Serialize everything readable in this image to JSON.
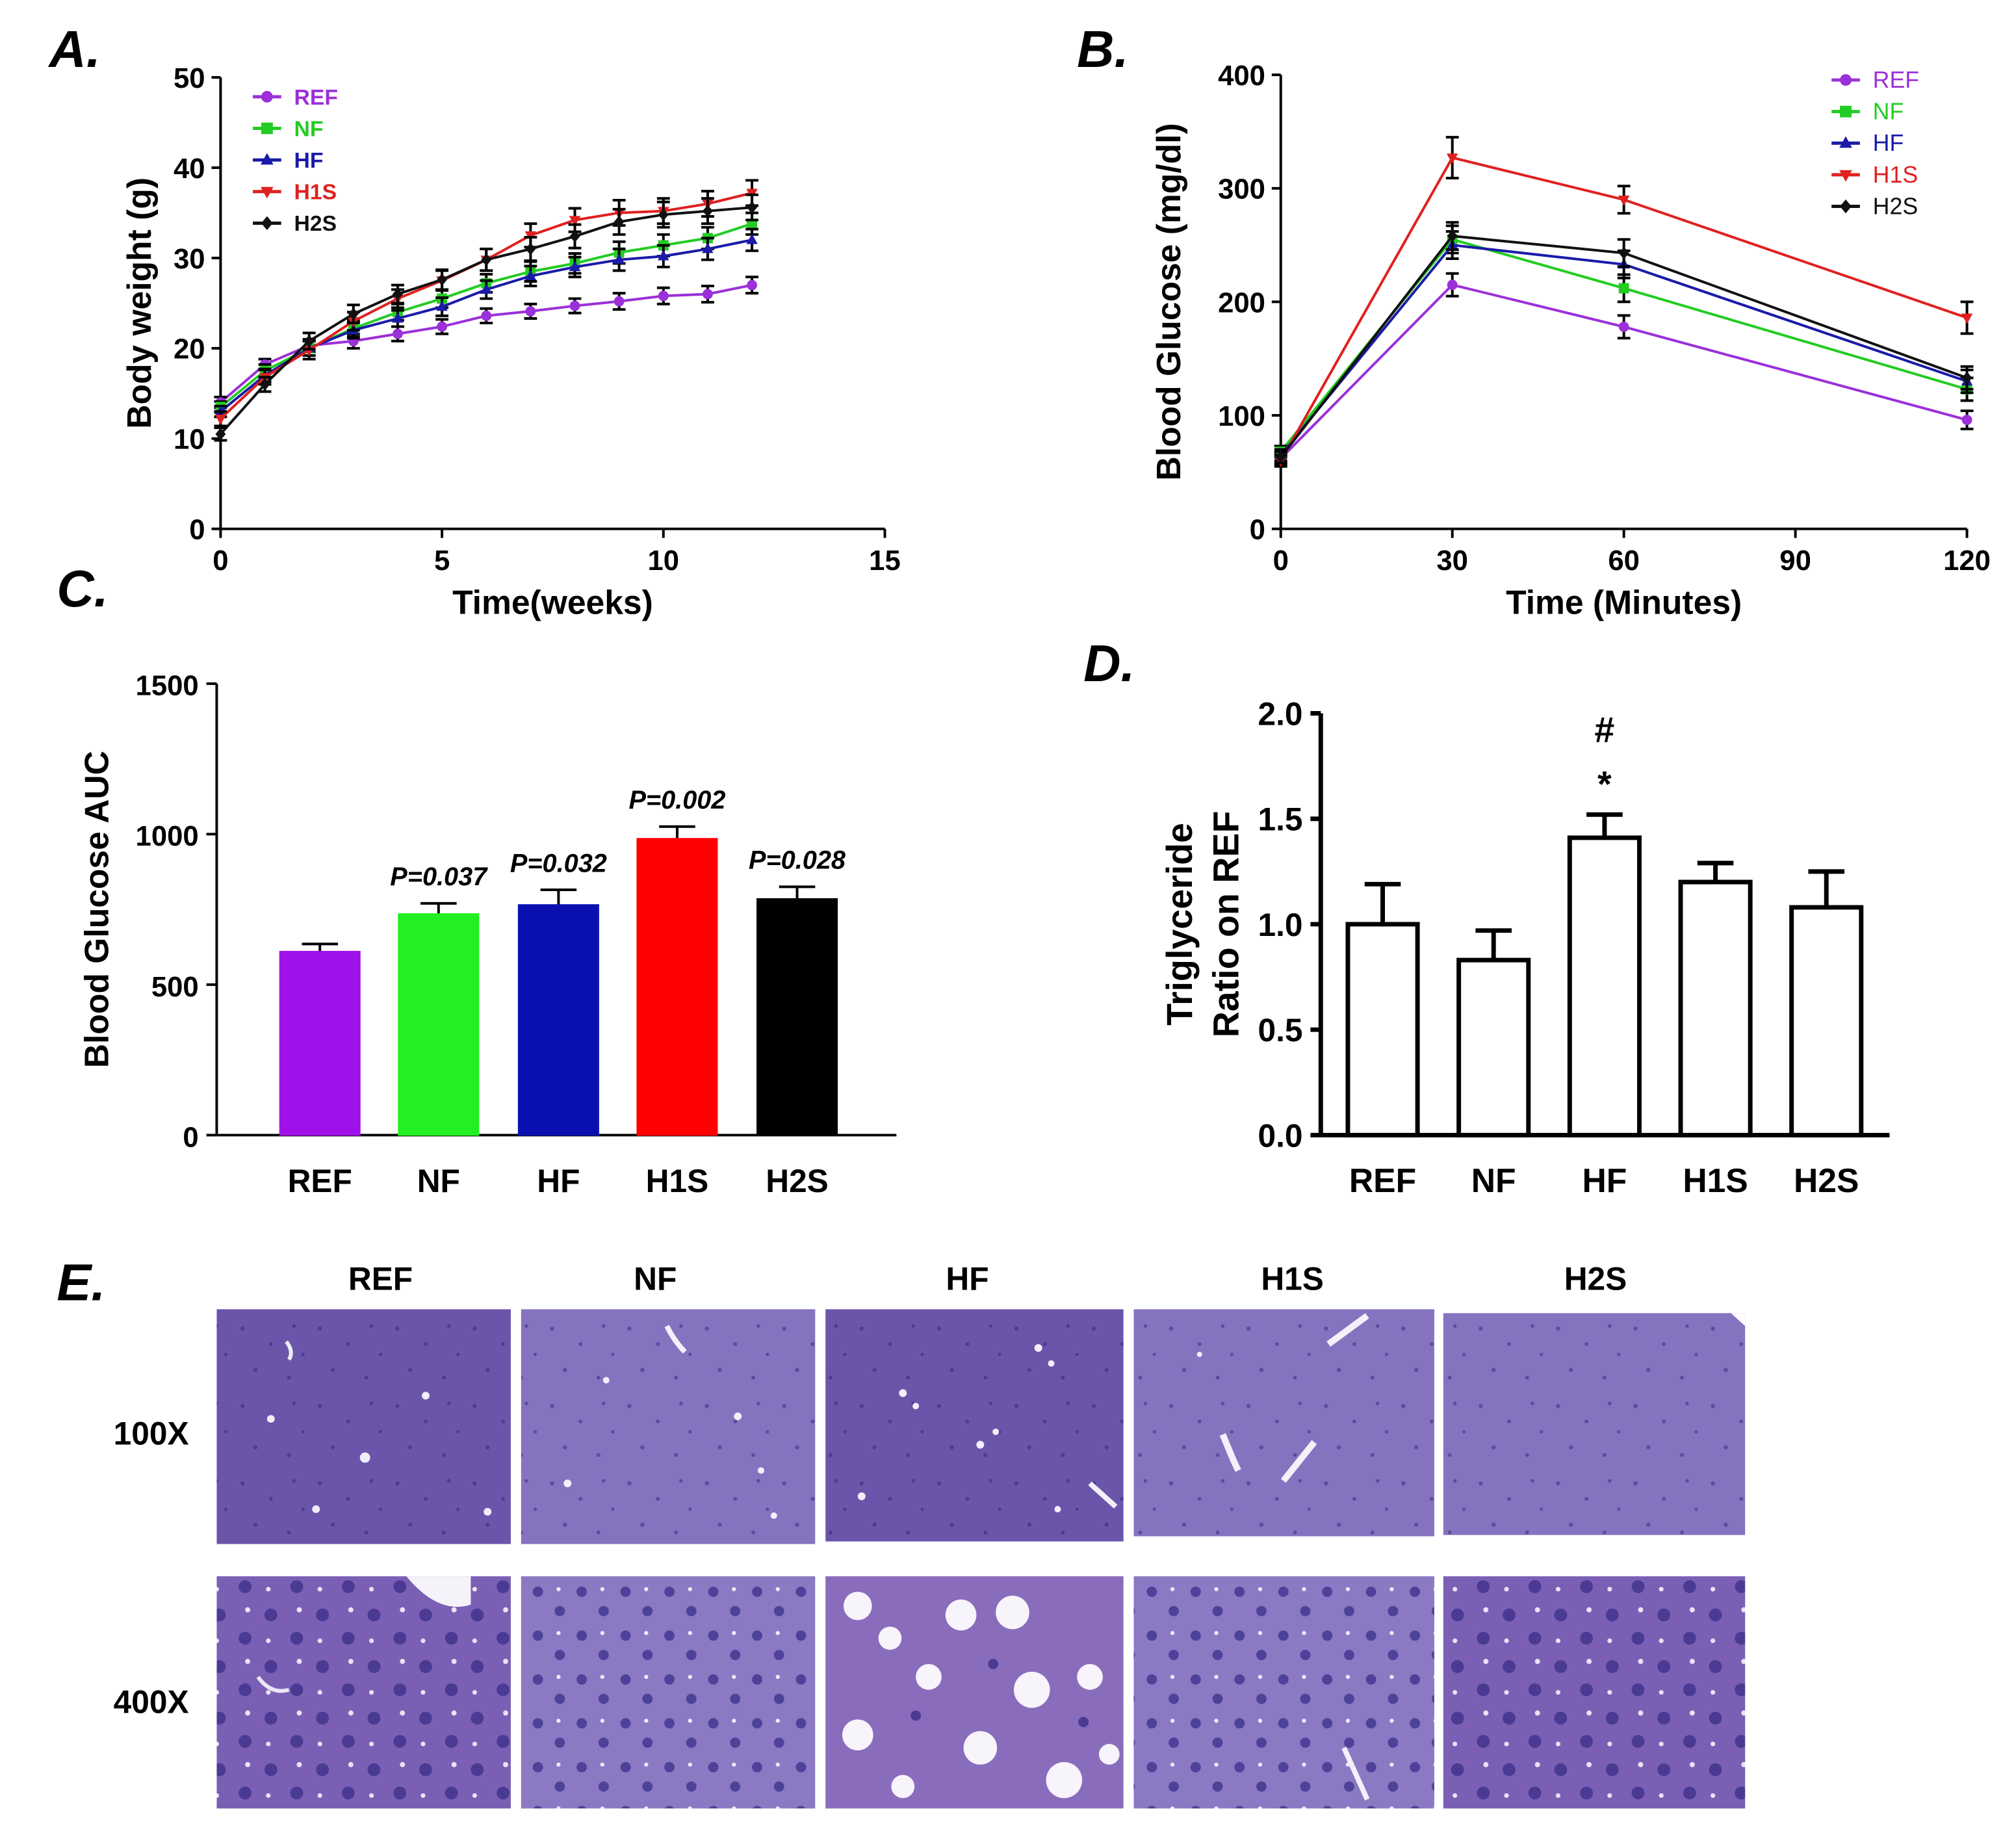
{
  "figure": {
    "panels": {
      "a": "A.",
      "b": "B.",
      "c": "C.",
      "d": "D.",
      "e": "E."
    }
  },
  "histology": {
    "columns": [
      "REF",
      "NF",
      "HF",
      "H1S",
      "H2S"
    ],
    "rows": [
      "100X",
      "400X"
    ],
    "colors": {
      "stain": "#6a4fa6",
      "dark": "#4b3a8c",
      "nucleus": "#3e3590",
      "vacuole": "#f4f0fa"
    }
  },
  "chart_data": [
    {
      "id": "A",
      "type": "line",
      "title": "",
      "xlabel": "Time(weeks)",
      "ylabel": "Body weight (g)",
      "xlim": [
        0,
        15
      ],
      "ylim": [
        0,
        50
      ],
      "xticks": [
        "0",
        "5",
        "10",
        "15"
      ],
      "yticks": [
        "0",
        "10",
        "20",
        "30",
        "40",
        "50"
      ],
      "legend_position": "top-left",
      "x": [
        0,
        1,
        2,
        3,
        4,
        5,
        6,
        7,
        8,
        9,
        10,
        11,
        12
      ],
      "series": [
        {
          "name": "REF",
          "color": "#9b30d9",
          "marker": "circle",
          "values": [
            14,
            18.2,
            20.3,
            20.8,
            21.6,
            22.4,
            23.6,
            24.1,
            24.7,
            25.2,
            25.8,
            26.0,
            27.0
          ],
          "errors": [
            0.6,
            0.6,
            0.7,
            0.8,
            0.8,
            0.8,
            0.8,
            0.8,
            0.8,
            0.9,
            0.9,
            0.9,
            0.9
          ]
        },
        {
          "name": "NF",
          "color": "#22cc22",
          "marker": "square",
          "values": [
            13.5,
            17.5,
            20.0,
            22.2,
            24.0,
            25.5,
            27.2,
            28.5,
            29.4,
            30.6,
            31.4,
            32.2,
            33.8
          ],
          "errors": [
            0.6,
            0.7,
            0.8,
            0.9,
            0.9,
            1.0,
            1.0,
            1.1,
            1.1,
            1.2,
            1.2,
            1.2,
            1.2
          ]
        },
        {
          "name": "HF",
          "color": "#1a1aa8",
          "marker": "triangle",
          "values": [
            13.0,
            17.0,
            20.0,
            22.0,
            23.3,
            24.6,
            26.5,
            28.0,
            29.0,
            29.8,
            30.2,
            31.0,
            32.0
          ],
          "errors": [
            0.6,
            0.7,
            0.8,
            0.9,
            0.9,
            1.0,
            1.0,
            1.1,
            1.1,
            1.2,
            1.2,
            1.2,
            1.2
          ]
        },
        {
          "name": "H1S",
          "color": "#e02020",
          "marker": "triangle-down",
          "values": [
            12.2,
            16.8,
            19.8,
            23.0,
            25.5,
            27.5,
            29.8,
            32.5,
            34.2,
            35.0,
            35.2,
            36.0,
            37.2
          ],
          "errors": [
            0.8,
            0.8,
            1.0,
            1.0,
            1.0,
            1.1,
            1.2,
            1.3,
            1.3,
            1.4,
            1.4,
            1.4,
            1.4
          ]
        },
        {
          "name": "H2S",
          "color": "#111111",
          "marker": "diamond",
          "values": [
            10.5,
            16.0,
            20.8,
            23.8,
            26.0,
            27.6,
            29.8,
            31.0,
            32.4,
            34.0,
            34.8,
            35.2,
            35.6
          ],
          "errors": [
            0.7,
            0.8,
            0.9,
            1.0,
            1.0,
            1.1,
            1.2,
            1.3,
            1.3,
            1.4,
            1.4,
            1.4,
            1.4
          ]
        }
      ]
    },
    {
      "id": "B",
      "type": "line",
      "title": "",
      "xlabel": "Time (Minutes)",
      "ylabel": "Blood Glucose (mg/dl)",
      "xlim": [
        0,
        120
      ],
      "ylim": [
        0,
        400
      ],
      "xticks": [
        "0",
        "30",
        "60",
        "90",
        "120"
      ],
      "yticks": [
        "0",
        "100",
        "200",
        "300",
        "400"
      ],
      "legend_position": "top-right",
      "x": [
        0,
        30,
        60,
        120
      ],
      "series": [
        {
          "name": "REF",
          "color": "#9b30d9",
          "marker": "circle",
          "values": [
            62,
            215,
            178,
            96
          ],
          "errors": [
            5,
            10,
            10,
            8
          ]
        },
        {
          "name": "NF",
          "color": "#22cc22",
          "marker": "square",
          "values": [
            68,
            255,
            212,
            123
          ],
          "errors": [
            5,
            12,
            12,
            10
          ]
        },
        {
          "name": "HF",
          "color": "#1a1aa8",
          "marker": "triangle",
          "values": [
            65,
            250,
            233,
            130
          ],
          "errors": [
            5,
            12,
            12,
            10
          ]
        },
        {
          "name": "H1S",
          "color": "#e02020",
          "marker": "triangle-down",
          "values": [
            60,
            327,
            290,
            186
          ],
          "errors": [
            5,
            18,
            12,
            14
          ]
        },
        {
          "name": "H2S",
          "color": "#111111",
          "marker": "diamond",
          "values": [
            63,
            258,
            243,
            133
          ],
          "errors": [
            5,
            12,
            12,
            10
          ]
        }
      ]
    },
    {
      "id": "C",
      "type": "bar",
      "title": "",
      "xlabel": "",
      "ylabel": "Blood Glucose AUC",
      "ylim": [
        0,
        1500
      ],
      "yticks": [
        "0",
        "500",
        "1000",
        "1500"
      ],
      "categories": [
        "REF",
        "NF",
        "HF",
        "H1S",
        "H2S"
      ],
      "values": [
        610,
        735,
        765,
        985,
        785
      ],
      "errors": [
        25,
        35,
        50,
        40,
        40
      ],
      "colors": [
        "#a010e8",
        "#22f022",
        "#0a10b0",
        "#ff0000",
        "#000000"
      ],
      "annotations": [
        "",
        "P=0.037",
        "P=0.032",
        "P=0.002",
        "P=0.028"
      ]
    },
    {
      "id": "D",
      "type": "bar",
      "title": "",
      "xlabel": "",
      "ylabel_line1": "Triglyceride",
      "ylabel_line2": "Ratio on REF",
      "ylim": [
        0,
        2.0
      ],
      "yticks": [
        "0.0",
        "0.5",
        "1.0",
        "1.5",
        "2.0"
      ],
      "categories": [
        "REF",
        "NF",
        "HF",
        "H1S",
        "H2S"
      ],
      "values": [
        1.0,
        0.83,
        1.41,
        1.2,
        1.08
      ],
      "errors": [
        0.19,
        0.14,
        0.11,
        0.09,
        0.17
      ],
      "colors": [
        "#ffffff",
        "#ffffff",
        "#ffffff",
        "#ffffff",
        "#ffffff"
      ],
      "annotations_top": [
        "",
        "",
        "#",
        "",
        ""
      ],
      "annotations_bottom": [
        "",
        "",
        "*",
        "",
        ""
      ]
    }
  ]
}
